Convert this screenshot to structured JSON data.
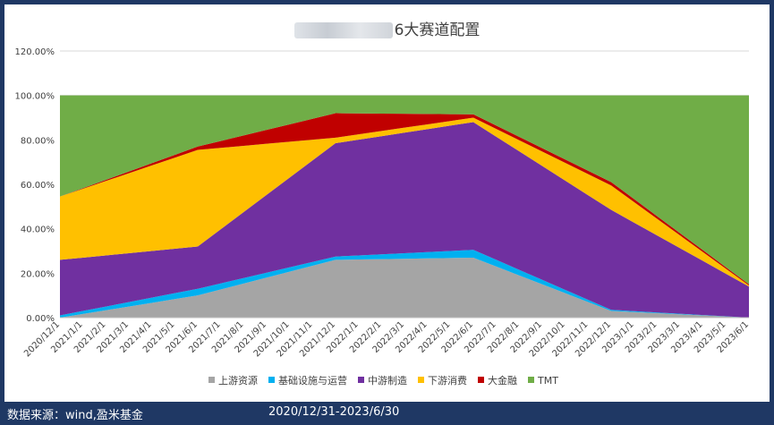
{
  "chart_data": {
    "type": "area",
    "stacked": true,
    "title": "6大赛道配置",
    "categories": [
      "2020/12/1",
      "2021/1/1",
      "2021/2/1",
      "2021/3/1",
      "2021/4/1",
      "2021/5/1",
      "2021/6/1",
      "2021/7/1",
      "2021/8/1",
      "2021/9/1",
      "2021/10/1",
      "2021/11/1",
      "2021/12/1",
      "2022/1/1",
      "2022/2/1",
      "2022/3/1",
      "2022/4/1",
      "2022/5/1",
      "2022/6/1",
      "2022/7/1",
      "2022/8/1",
      "2022/9/1",
      "2022/10/1",
      "2022/11/1",
      "2022/12/1",
      "2023/1/1",
      "2023/2/1",
      "2023/3/1",
      "2023/4/1",
      "2023/5/1",
      "2023/6/1"
    ],
    "anchor_indices": [
      0,
      6,
      12,
      18,
      24,
      30
    ],
    "series": [
      {
        "name": "上游资源",
        "color": "#a5a5a5",
        "anchor_values": [
          0,
          10,
          26,
          27,
          3,
          0
        ]
      },
      {
        "name": "基础设施与运营",
        "color": "#00b0f0",
        "anchor_values": [
          1,
          3,
          1.5,
          3.5,
          0.5,
          0
        ]
      },
      {
        "name": "中游制造",
        "color": "#7030a0",
        "anchor_values": [
          25,
          19,
          51,
          57.5,
          45,
          14
        ]
      },
      {
        "name": "下游消费",
        "color": "#ffc000",
        "anchor_values": [
          28.5,
          43.5,
          2.5,
          2,
          11,
          0.5
        ]
      },
      {
        "name": "大金融",
        "color": "#c00000",
        "anchor_values": [
          0,
          1.5,
          11,
          1.5,
          1.5,
          0.5
        ]
      },
      {
        "name": "TMT",
        "color": "#70ad47",
        "anchor_values": [
          45.5,
          23,
          8,
          8.5,
          39,
          85
        ]
      }
    ],
    "yticks": [
      "0.00%",
      "20.00%",
      "40.00%",
      "60.00%",
      "80.00%",
      "100.00%",
      "120.00%"
    ],
    "ylim": [
      0,
      120
    ],
    "grid": true,
    "legend": "bottom"
  },
  "footer": {
    "source": "数据来源：wind,盈米基金",
    "range": "2020/12/31-2023/6/30"
  }
}
